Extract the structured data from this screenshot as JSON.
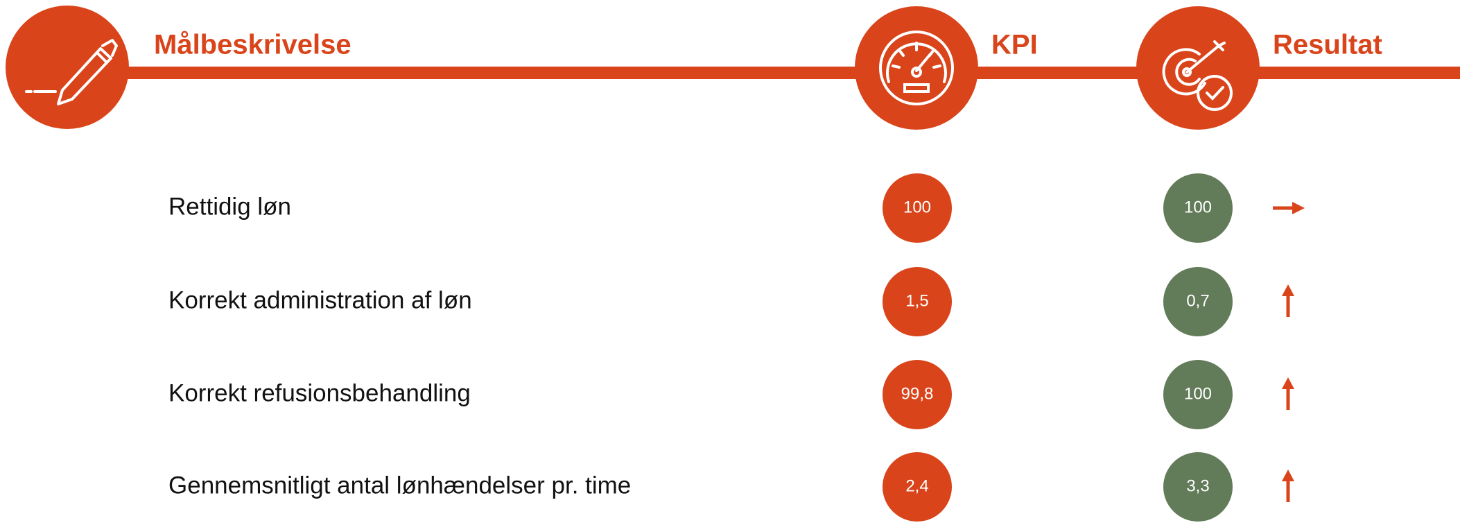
{
  "header": {
    "goal": "Målbeskrivelse",
    "kpi": "KPI",
    "result": "Resultat"
  },
  "rows": [
    {
      "description": "Rettidig løn",
      "kpi": "100",
      "result": "100",
      "trend": "right"
    },
    {
      "description": "Korrekt administration af løn",
      "kpi": "1,5",
      "result": "0,7",
      "trend": "up"
    },
    {
      "description": "Korrekt refusionsbehandling",
      "kpi": "99,8",
      "result": "100",
      "trend": "up"
    },
    {
      "description": "Gennemsnitligt antal lønhændelser pr. time",
      "kpi": "2,4",
      "result": "3,3",
      "trend": "up"
    }
  ]
}
